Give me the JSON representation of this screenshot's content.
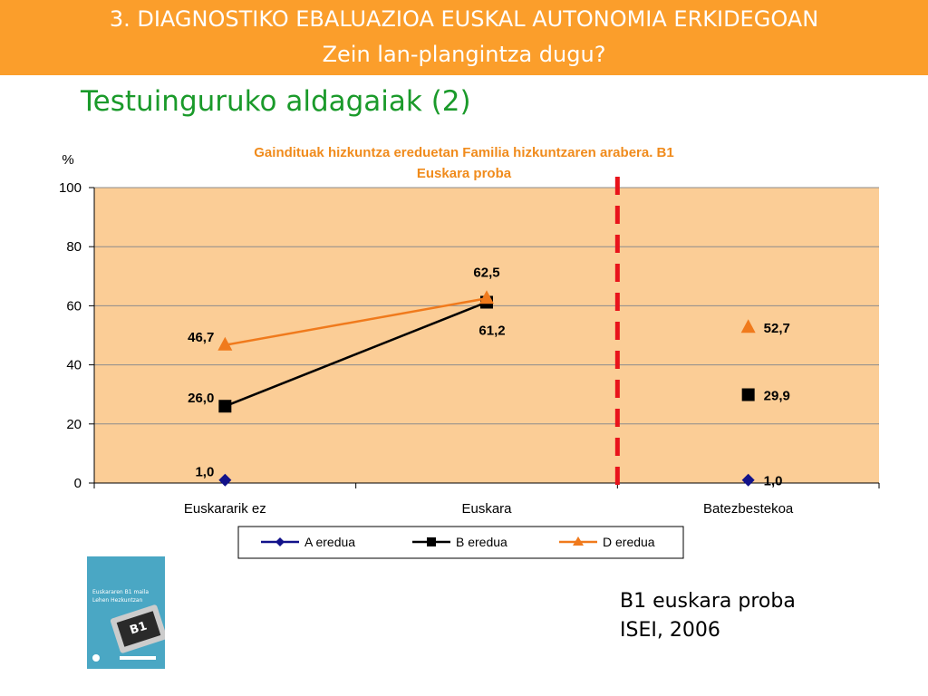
{
  "header": {
    "line1": "3. DIAGNOSTIKO EBALUAZIOA EUSKAL AUTONOMIA ERKIDEGOAN",
    "line2": "Zein lan-plangintza dugu?"
  },
  "subtitle": "Testuinguruko aldagaiak (2)",
  "book_cover": {
    "title_line1": "Euskararen B1 maila",
    "title_line2": "Lehen Hezkuntzan",
    "screen_text": "B1"
  },
  "source": {
    "line1": "B1 euskara proba",
    "line2": "ISEI, 2006"
  },
  "colors": {
    "header_bg": "#fb9e2b",
    "subtitle": "#1a9a2a",
    "chart_title": "#f08b1c",
    "plot_bg": "#fbcd96",
    "divider": "#e8141b"
  },
  "chart_data": {
    "type": "line",
    "title_line1": "Gaindituak hizkuntza ereduetan Familia hizkuntzaren arabera. B1",
    "title_line2": "Euskara proba",
    "ylabel": "%",
    "ylim": [
      0,
      100
    ],
    "yticks": [
      "0",
      "20",
      "40",
      "60",
      "80",
      "100"
    ],
    "categories": [
      "Euskararik ez",
      "Euskara",
      "Batezbestekoa"
    ],
    "grid": true,
    "legend_position": "bottom",
    "divider_before_category": "Batezbestekoa",
    "series": [
      {
        "name": "A eredua",
        "color": "#12128a",
        "marker": "diamond",
        "points": [
          {
            "category": "Euskararik ez",
            "value": 1.0,
            "label": "1,0",
            "label_side": "left",
            "connected": true
          },
          {
            "category": "Batezbestekoa",
            "value": 1.0,
            "label": "1,0",
            "label_side": "right",
            "connected": false
          }
        ]
      },
      {
        "name": "B eredua",
        "color": "#000000",
        "marker": "square",
        "points": [
          {
            "category": "Euskararik ez",
            "value": 26.0,
            "label": "26,0",
            "label_side": "left",
            "connected": true
          },
          {
            "category": "Euskara",
            "value": 61.2,
            "label": "61,2",
            "label_side": "below",
            "connected": true
          },
          {
            "category": "Batezbestekoa",
            "value": 29.9,
            "label": "29,9",
            "label_side": "right",
            "connected": false
          }
        ]
      },
      {
        "name": "D eredua",
        "color": "#f07a1c",
        "marker": "triangle",
        "points": [
          {
            "category": "Euskararik ez",
            "value": 46.7,
            "label": "46,7",
            "label_side": "left",
            "connected": true
          },
          {
            "category": "Euskara",
            "value": 62.5,
            "label": "62,5",
            "label_side": "above",
            "connected": true
          },
          {
            "category": "Batezbestekoa",
            "value": 52.7,
            "label": "52,7",
            "label_side": "right",
            "connected": false
          }
        ]
      }
    ]
  }
}
